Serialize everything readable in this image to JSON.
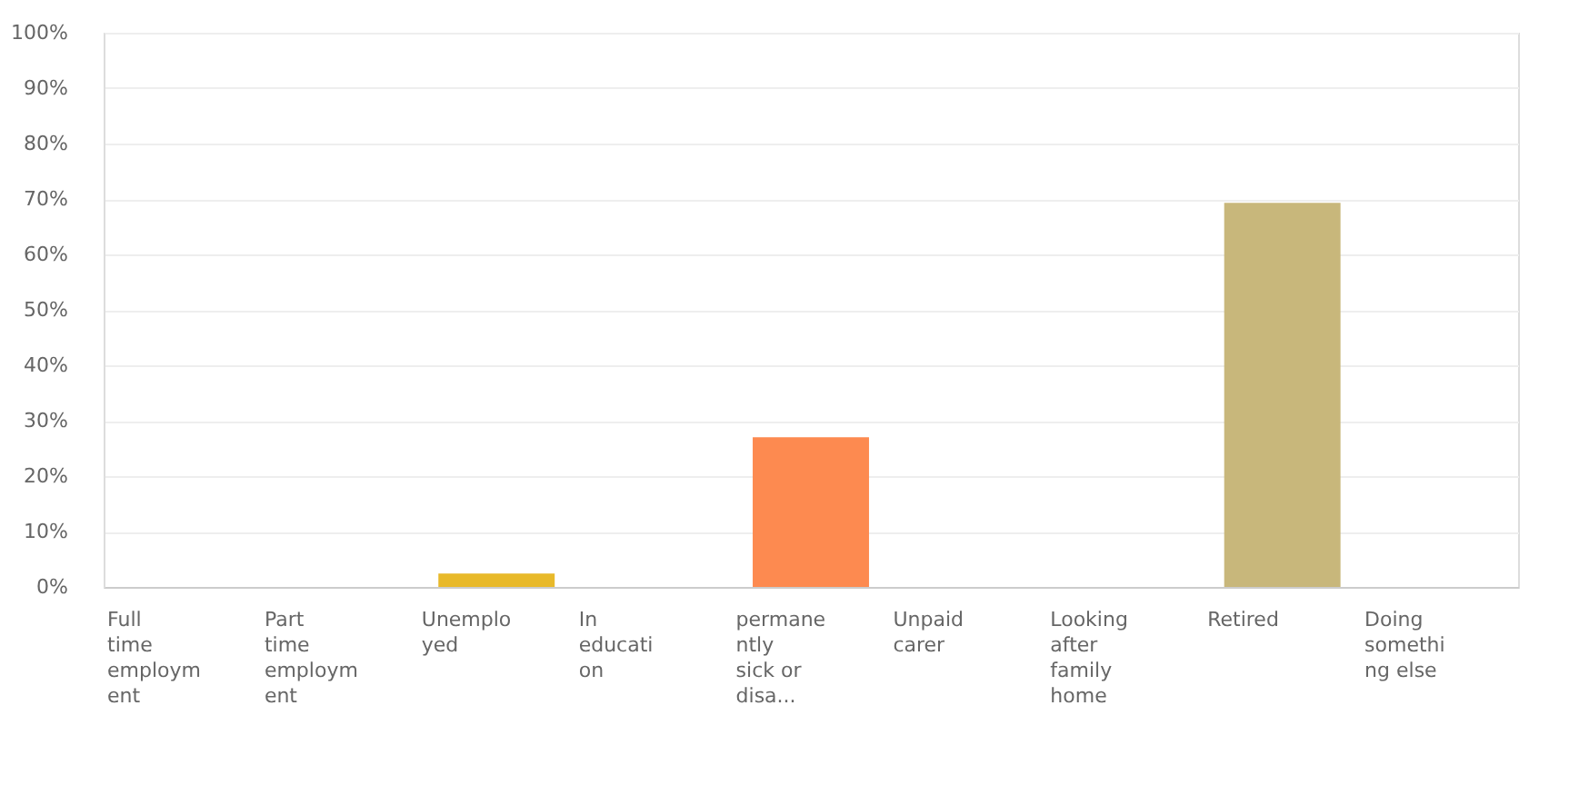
{
  "chart_data": {
    "type": "bar",
    "categories": [
      "Full time employment",
      "Part time employment",
      "Unemployed",
      "In education",
      "permanently sick or disa...",
      "Unpaid carer",
      "Looking after family home",
      "Retired",
      "Doing something else"
    ],
    "values": [
      0,
      0,
      2.4,
      0,
      27,
      0,
      0,
      69.3,
      0
    ],
    "colors": [
      "#5aa0d8",
      "#6fc1a7",
      "#e8b92a",
      "#9b7fc0",
      "#fd8a50",
      "#8cc04f",
      "#e06c8f",
      "#c8b77b",
      "#7a9cc4"
    ],
    "ylim": [
      0,
      100
    ],
    "yticks": [
      {
        "value": 0,
        "label": "0%"
      },
      {
        "value": 10,
        "label": "10%"
      },
      {
        "value": 20,
        "label": "20%"
      },
      {
        "value": 30,
        "label": "30%"
      },
      {
        "value": 40,
        "label": "40%"
      },
      {
        "value": 50,
        "label": "50%"
      },
      {
        "value": 60,
        "label": "60%"
      },
      {
        "value": 70,
        "label": "70%"
      },
      {
        "value": 80,
        "label": "80%"
      },
      {
        "value": 90,
        "label": "90%"
      },
      {
        "value": 100,
        "label": "100%"
      }
    ],
    "grid": "y"
  }
}
